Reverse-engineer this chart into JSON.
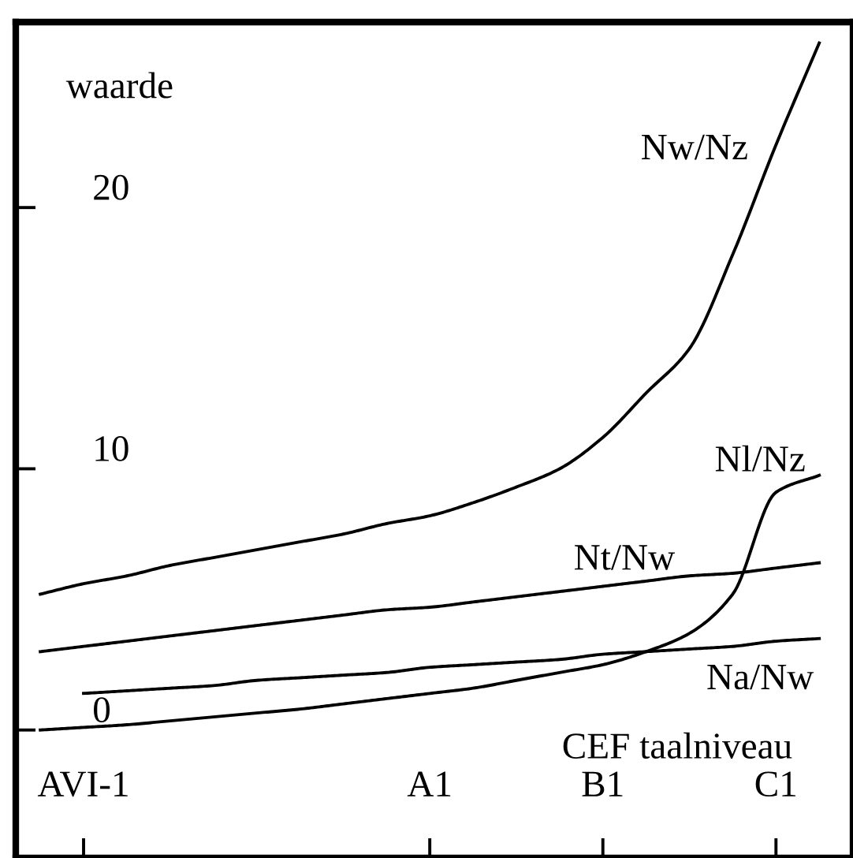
{
  "chart_data": {
    "type": "line",
    "xlabel": "CEF taalniveau",
    "ylabel": "waarde",
    "categories": [
      null,
      "AVI-1",
      null,
      null,
      null,
      null,
      null,
      null,
      null,
      "A1",
      null,
      null,
      null,
      "B1",
      null,
      null,
      null,
      "C1",
      null
    ],
    "ylim": [
      -4.9,
      27.1
    ],
    "yticks": [
      0,
      10,
      20
    ],
    "series": [
      {
        "name": "Nw/Nz",
        "color": "#000000",
        "values": [
          5.2,
          5.6,
          5.9,
          6.3,
          6.6,
          6.9,
          7.2,
          7.5,
          7.9,
          8.2,
          8.7,
          9.3,
          10.0,
          11.2,
          12.9,
          14.6,
          18.2,
          22.4,
          26.3
        ]
      },
      {
        "name": "Nt/Nw",
        "color": "#000000",
        "values": [
          3.0,
          3.2,
          3.4,
          3.6,
          3.8,
          4.0,
          4.2,
          4.4,
          4.6,
          4.7,
          4.9,
          5.1,
          5.3,
          5.5,
          5.7,
          5.9,
          6.0,
          6.2,
          6.4
        ]
      },
      {
        "name": "Na/Nw",
        "color": "#000000",
        "values": [
          null,
          1.4,
          1.5,
          1.6,
          1.7,
          1.9,
          2.0,
          2.1,
          2.2,
          2.4,
          2.5,
          2.6,
          2.7,
          2.9,
          3.0,
          3.1,
          3.2,
          3.4,
          3.5
        ]
      },
      {
        "name": "Nl/Nz",
        "color": "#000000",
        "values": [
          0.0,
          0.1,
          0.2,
          0.35,
          0.5,
          0.65,
          0.8,
          1.0,
          1.2,
          1.4,
          1.6,
          1.9,
          2.2,
          2.5,
          3.0,
          3.7,
          5.2,
          9.1,
          9.75
        ]
      }
    ],
    "grid": false,
    "legend": false,
    "marker": "none",
    "line_style": "solid"
  }
}
